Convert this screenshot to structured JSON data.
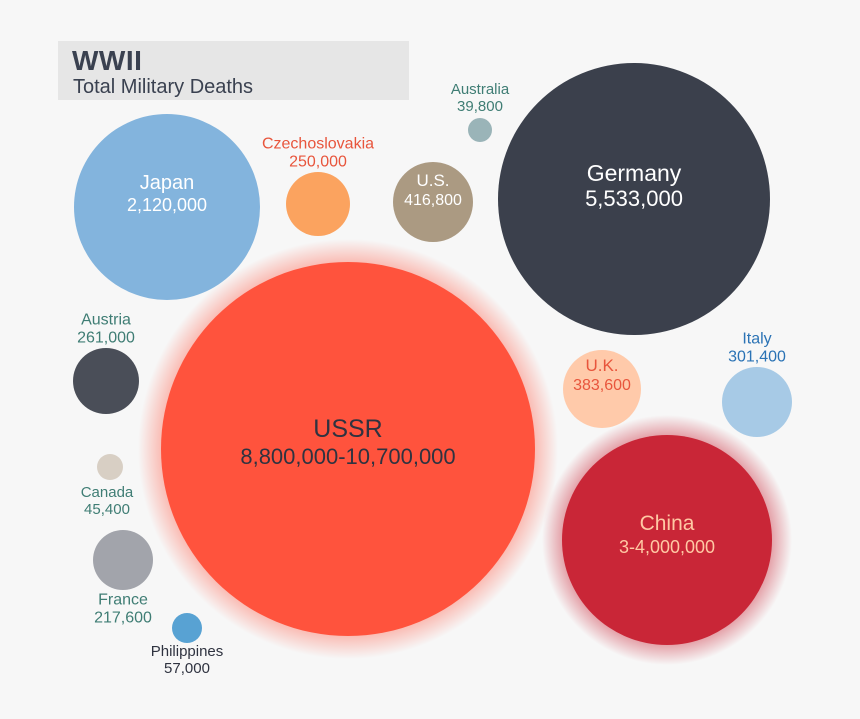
{
  "chart_data": {
    "type": "bubble",
    "title": "WWII",
    "subtitle": "Total Military Deaths",
    "points": [
      {
        "name": "USSR",
        "value_label": "8,800,000-10,700,000",
        "value": 9750000,
        "color": "#ff533d"
      },
      {
        "name": "Germany",
        "value_label": "5,533,000",
        "value": 5533000,
        "color": "#3b404c"
      },
      {
        "name": "China",
        "value_label": "3-4,000,000",
        "value": 3500000,
        "color": "#c92637"
      },
      {
        "name": "Japan",
        "value_label": "2,120,000",
        "value": 2120000,
        "color": "#83b4dd"
      },
      {
        "name": "U.S.",
        "value_label": "416,800",
        "value": 416800,
        "color": "#ab9a82"
      },
      {
        "name": "U.K.",
        "value_label": "383,600",
        "value": 383600,
        "color": "#ffcaaa"
      },
      {
        "name": "Italy",
        "value_label": "301,400",
        "value": 301400,
        "color": "#a7cae6"
      },
      {
        "name": "Austria",
        "value_label": "261,000",
        "value": 261000,
        "color": "#4a4e58"
      },
      {
        "name": "Czechoslovakia",
        "value_label": "250,000",
        "value": 250000,
        "color": "#fba35f"
      },
      {
        "name": "France",
        "value_label": "217,600",
        "value": 217600,
        "color": "#a2a4ab"
      },
      {
        "name": "Philippines",
        "value_label": "57,000",
        "value": 57000,
        "color": "#58a2d3"
      },
      {
        "name": "Canada",
        "value_label": "45,400",
        "value": 45400,
        "color": "#d8cfc4"
      },
      {
        "name": "Australia",
        "value_label": "39,800",
        "value": 39800,
        "color": "#9ab4b8"
      }
    ]
  }
}
